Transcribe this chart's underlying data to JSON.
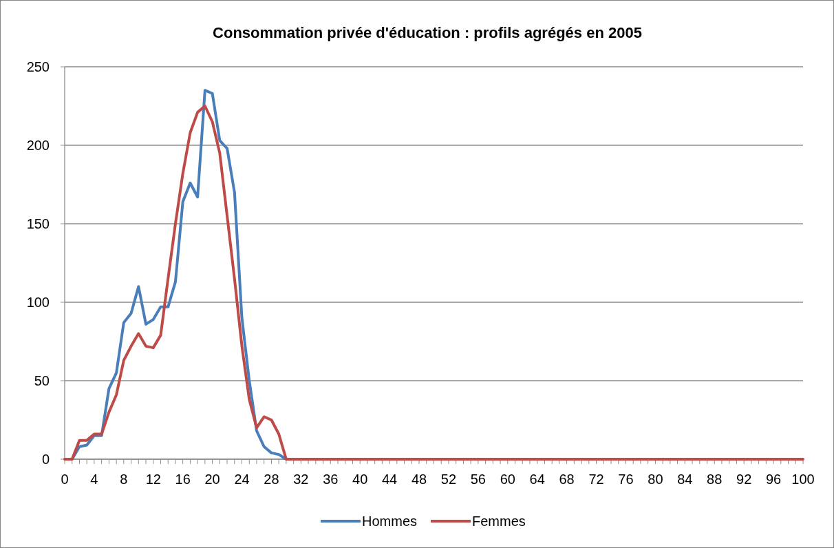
{
  "chart_data": {
    "type": "line",
    "title": "Consommation privée d'éducation : profils agrégés en 2005",
    "x": [
      0,
      1,
      2,
      3,
      4,
      5,
      6,
      7,
      8,
      9,
      10,
      11,
      12,
      13,
      14,
      15,
      16,
      17,
      18,
      19,
      20,
      21,
      22,
      23,
      24,
      25,
      26,
      27,
      28,
      29,
      30,
      31,
      32,
      33,
      34,
      35,
      36,
      37,
      38,
      39,
      40,
      41,
      42,
      43,
      44,
      45,
      46,
      47,
      48,
      49,
      50,
      51,
      52,
      53,
      54,
      55,
      56,
      57,
      58,
      59,
      60,
      61,
      62,
      63,
      64,
      65,
      66,
      67,
      68,
      69,
      70,
      71,
      72,
      73,
      74,
      75,
      76,
      77,
      78,
      79,
      80,
      81,
      82,
      83,
      84,
      85,
      86,
      87,
      88,
      89,
      90,
      91,
      92,
      93,
      94,
      95,
      96,
      97,
      98,
      99,
      100
    ],
    "series": [
      {
        "name": "Hommes",
        "color": "#4a7ebb",
        "values": [
          null,
          0,
          8,
          9,
          15,
          15,
          45,
          55,
          87,
          93,
          110,
          86,
          89,
          97,
          97,
          113,
          164,
          176,
          167,
          235,
          233,
          203,
          198,
          170,
          90,
          50,
          18,
          8,
          4,
          3,
          0,
          null,
          null,
          null,
          null,
          null,
          null,
          null,
          null,
          null,
          null,
          null,
          null,
          null,
          null,
          null,
          null,
          null,
          null,
          null,
          null,
          null,
          null,
          null,
          null,
          null,
          null,
          null,
          null,
          null,
          null,
          null,
          null,
          null,
          null,
          null,
          null,
          null,
          null,
          null,
          null,
          null,
          null,
          null,
          null,
          null,
          null,
          null,
          null,
          null,
          null,
          null,
          null,
          null,
          null,
          null,
          null,
          null,
          null,
          null,
          null,
          null,
          null,
          null,
          null,
          null,
          null,
          null,
          null,
          null,
          null
        ]
      },
      {
        "name": "Femmes",
        "color": "#be4b48",
        "values": [
          0,
          0,
          12,
          12,
          16,
          16,
          30,
          41,
          63,
          72,
          80,
          72,
          71,
          79,
          115,
          150,
          182,
          208,
          221,
          225,
          215,
          195,
          155,
          115,
          72,
          38,
          20,
          27,
          25,
          16,
          0,
          0,
          0,
          0,
          0,
          0,
          0,
          0,
          0,
          0,
          0,
          0,
          0,
          0,
          0,
          0,
          0,
          0,
          0,
          0,
          0,
          0,
          0,
          0,
          0,
          0,
          0,
          0,
          0,
          0,
          0,
          0,
          0,
          0,
          0,
          0,
          0,
          0,
          0,
          0,
          0,
          0,
          0,
          0,
          0,
          0,
          0,
          0,
          0,
          0,
          0,
          0,
          0,
          0,
          0,
          0,
          0,
          0,
          0,
          0,
          0,
          0,
          0,
          0,
          0,
          0,
          0,
          0,
          0,
          0,
          0
        ]
      }
    ],
    "xlim": [
      0,
      100
    ],
    "xticks": [
      0,
      {
        "value": 1,
        "label": null
      },
      {
        "value": 2,
        "label": null
      },
      {
        "value": 3,
        "label": null
      },
      4,
      {
        "value": 5,
        "label": null
      },
      {
        "value": 6,
        "label": null
      },
      {
        "value": 7,
        "label": null
      },
      8,
      {
        "value": 9,
        "label": null
      },
      {
        "value": 10,
        "label": null
      },
      {
        "value": 11,
        "label": null
      },
      12,
      {
        "value": 13,
        "label": null
      },
      {
        "value": 14,
        "label": null
      },
      {
        "value": 15,
        "label": null
      },
      16,
      {
        "value": 17,
        "label": null
      },
      {
        "value": 18,
        "label": null
      },
      {
        "value": 19,
        "label": null
      },
      20,
      {
        "value": 21,
        "label": null
      },
      {
        "value": 22,
        "label": null
      },
      {
        "value": 23,
        "label": null
      },
      24,
      {
        "value": 25,
        "label": null
      },
      {
        "value": 26,
        "label": null
      },
      {
        "value": 27,
        "label": null
      },
      28,
      {
        "value": 29,
        "label": null
      },
      {
        "value": 30,
        "label": null
      },
      {
        "value": 31,
        "label": null
      },
      32,
      {
        "value": 33,
        "label": null
      },
      {
        "value": 34,
        "label": null
      },
      {
        "value": 35,
        "label": null
      },
      36,
      {
        "value": 37,
        "label": null
      },
      {
        "value": 38,
        "label": null
      },
      {
        "value": 39,
        "label": null
      },
      40,
      {
        "value": 41,
        "label": null
      },
      {
        "value": 42,
        "label": null
      },
      {
        "value": 43,
        "label": null
      },
      44,
      {
        "value": 45,
        "label": null
      },
      {
        "value": 46,
        "label": null
      },
      {
        "value": 47,
        "label": null
      },
      48,
      {
        "value": 49,
        "label": null
      },
      {
        "value": 50,
        "label": null
      },
      {
        "value": 51,
        "label": null
      },
      52,
      {
        "value": 53,
        "label": null
      },
      {
        "value": 54,
        "label": null
      },
      {
        "value": 55,
        "label": null
      },
      56,
      {
        "value": 57,
        "label": null
      },
      {
        "value": 58,
        "label": null
      },
      {
        "value": 59,
        "label": null
      },
      60,
      {
        "value": 61,
        "label": null
      },
      {
        "value": 62,
        "label": null
      },
      {
        "value": 63,
        "label": null
      },
      64,
      {
        "value": 65,
        "label": null
      },
      {
        "value": 66,
        "label": null
      },
      {
        "value": 67,
        "label": null
      },
      68,
      {
        "value": 69,
        "label": null
      },
      {
        "value": 70,
        "label": null
      },
      {
        "value": 71,
        "label": null
      },
      72,
      {
        "value": 73,
        "label": null
      },
      {
        "value": 74,
        "label": null
      },
      {
        "value": 75,
        "label": null
      },
      76,
      {
        "value": 77,
        "label": null
      },
      {
        "value": 78,
        "label": null
      },
      {
        "value": 79,
        "label": null
      },
      80,
      {
        "value": 81,
        "label": null
      },
      {
        "value": 82,
        "label": null
      },
      {
        "value": 83,
        "label": null
      },
      84,
      {
        "value": 85,
        "label": null
      },
      {
        "value": 86,
        "label": null
      },
      {
        "value": 87,
        "label": null
      },
      88,
      {
        "value": 89,
        "label": null
      },
      {
        "value": 90,
        "label": null
      },
      {
        "value": 91,
        "label": null
      },
      92,
      {
        "value": 93,
        "label": null
      },
      {
        "value": 94,
        "label": null
      },
      {
        "value": 95,
        "label": null
      },
      96,
      {
        "value": 97,
        "label": null
      },
      {
        "value": 98,
        "label": null
      },
      {
        "value": 99,
        "label": null
      },
      100
    ],
    "ylim": [
      0,
      250
    ],
    "yticks": [
      0,
      50,
      100,
      150,
      200,
      250
    ],
    "grid": "y",
    "legend": "bottom",
    "marker": "none",
    "line_style": "solid"
  }
}
